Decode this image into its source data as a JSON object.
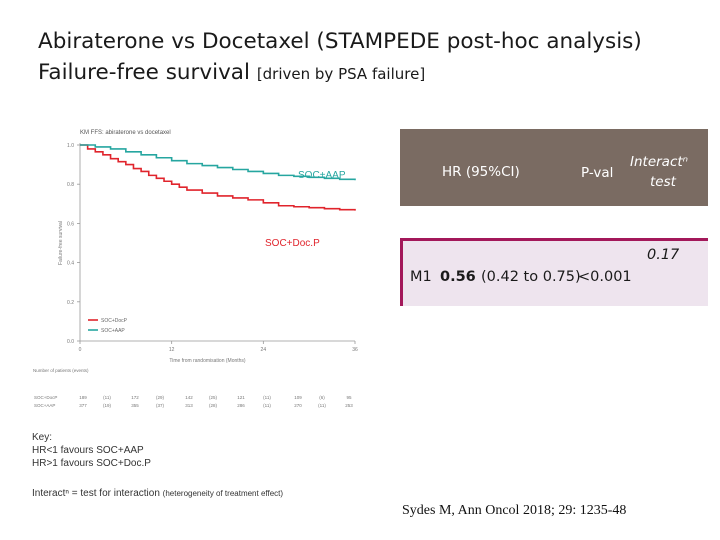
{
  "slide": {
    "title_line1": "Abiraterone vs Docetaxel (STAMPEDE post-hoc analysis)",
    "title_line2": "Failure-free survival",
    "title_line2_small": "[driven by PSA failure]"
  },
  "table": {
    "headers": {
      "hr": "HR (95%CI)",
      "pval": "P-val",
      "interaction_line1": "Interactⁿ",
      "interaction_line2": "test"
    },
    "row": {
      "label": "M1",
      "hr_value": "0.56",
      "hr_ci": "(0.42 to 0.75)",
      "pval": "<0.001",
      "interaction": "0.17"
    },
    "colors": {
      "header_bg": "#7a6b62",
      "row_bg": "#eee4ee",
      "row_border": "#a3185a"
    }
  },
  "key": {
    "heading": "Key:",
    "line1": "HR<1 favours SOC+AAP",
    "line2": "HR>1 favours SOC+Doc.P"
  },
  "note": {
    "main": "Interactⁿ = test for interaction",
    "small": "(heterogeneity of treatment effect)"
  },
  "citation": "Sydes M, Ann Oncol 2018; 29: 1235-48",
  "chart_data": {
    "type": "line",
    "title": "KM FFS: abiraterone vs docetaxel",
    "xlabel": "Time from randomisation (Months)",
    "ylabel": "Failure-free survival",
    "xlim": [
      0,
      36
    ],
    "ylim": [
      0,
      1
    ],
    "x_ticks": [
      "0",
      "12",
      "24",
      "36"
    ],
    "y_ticks": [
      "0.0",
      "0.2",
      "0.4",
      "0.6",
      "0.8",
      "1.0"
    ],
    "legend_items": [
      "SOC+DocP",
      "SOC+AAP"
    ],
    "legend_position": "bottom-left",
    "annotations": {
      "aap": "SOC+AAP",
      "docp": "SOC+Doc.P"
    },
    "series": [
      {
        "name": "SOC+DocP",
        "color": "#e0242c",
        "x": [
          0,
          1,
          2,
          3,
          4,
          5,
          6,
          7,
          8,
          9,
          10,
          11,
          12,
          13,
          14,
          16,
          18,
          20,
          22,
          24,
          26,
          28,
          30,
          32,
          34,
          36
        ],
        "y": [
          1.0,
          0.98,
          0.965,
          0.95,
          0.93,
          0.915,
          0.9,
          0.88,
          0.865,
          0.845,
          0.83,
          0.815,
          0.8,
          0.785,
          0.77,
          0.755,
          0.74,
          0.73,
          0.72,
          0.705,
          0.69,
          0.685,
          0.68,
          0.675,
          0.67,
          0.665
        ]
      },
      {
        "name": "SOC+AAP",
        "color": "#26a6a0",
        "x": [
          0,
          2,
          4,
          6,
          8,
          10,
          12,
          14,
          16,
          18,
          20,
          22,
          24,
          26,
          28,
          30,
          32,
          34,
          36
        ],
        "y": [
          1.0,
          0.99,
          0.98,
          0.965,
          0.95,
          0.935,
          0.92,
          0.905,
          0.895,
          0.885,
          0.875,
          0.865,
          0.855,
          0.845,
          0.84,
          0.835,
          0.83,
          0.825,
          0.82
        ]
      }
    ],
    "risk_table": {
      "heading": "Number of patients (events)",
      "times": [
        "0",
        "12",
        "24",
        "36"
      ],
      "rows": [
        {
          "label": "SOC+DocP",
          "values": [
            "189",
            "(11)",
            "172",
            "(29)",
            "142",
            "(25)",
            "121",
            "(11)",
            "109",
            "(6)",
            "95"
          ]
        },
        {
          "label": "SOC+AAP",
          "values": [
            "377",
            "(19)",
            "355",
            "(37)",
            "313",
            "(28)",
            "286",
            "(11)",
            "270",
            "(11)",
            "253"
          ]
        }
      ]
    }
  }
}
